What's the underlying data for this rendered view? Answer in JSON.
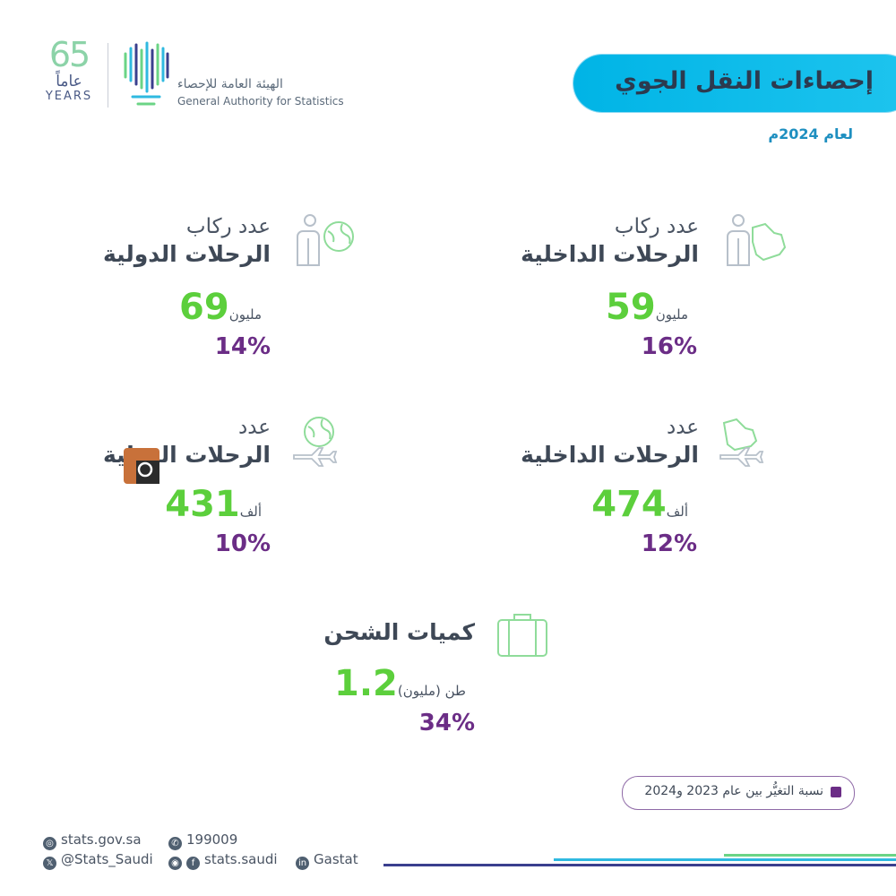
{
  "header": {
    "title": "إحصاءات النقل الجوي",
    "subtitle": "لعام 2024م"
  },
  "logo": {
    "anniversary_number": "65",
    "anniversary_ar": "عاماً",
    "anniversary_en": "YEARS",
    "org_name_ar": "الهيئة العامة للإحصاء",
    "org_name_en": "General Authority for Statistics"
  },
  "stats": {
    "domestic_passengers": {
      "label1": "عدد ركاب",
      "label2": "الرحلات الداخلية",
      "value": "59",
      "unit": "مليون",
      "change": "16%",
      "icon": "passenger-saudi-map-icon"
    },
    "international_passengers": {
      "label1": "عدد ركاب",
      "label2": "الرحلات الدولية",
      "value": "69",
      "unit": "مليون",
      "change": "14%",
      "icon": "passenger-globe-icon"
    },
    "domestic_flights": {
      "label1": "عدد",
      "label2": "الرحلات الداخلية",
      "value": "474",
      "unit": "ألف",
      "change": "12%",
      "icon": "plane-saudi-map-icon"
    },
    "international_flights": {
      "label1": "عدد",
      "label2": "الرحلات الدولية",
      "value": "431",
      "unit": "ألف",
      "change": "10%",
      "icon": "plane-globe-icon"
    },
    "cargo": {
      "label": "كميات الشحن",
      "value": "1.2",
      "unit": "طن (مليون)",
      "change": "34%",
      "icon": "suitcase-icon"
    }
  },
  "legend": {
    "text": "نسبة التغيُّر بين عام 2023 و2024",
    "color": "#6b2d86"
  },
  "footer": {
    "website": "stats.gov.sa",
    "phone": "199009",
    "x_handle": "@Stats_Saudi",
    "instagram_facebook": "stats.saudi",
    "linkedin": "Gastat"
  },
  "colors": {
    "accent_blue": "#00b4e6",
    "value_green": "#5ccf3c",
    "change_purple": "#6b2d86"
  }
}
